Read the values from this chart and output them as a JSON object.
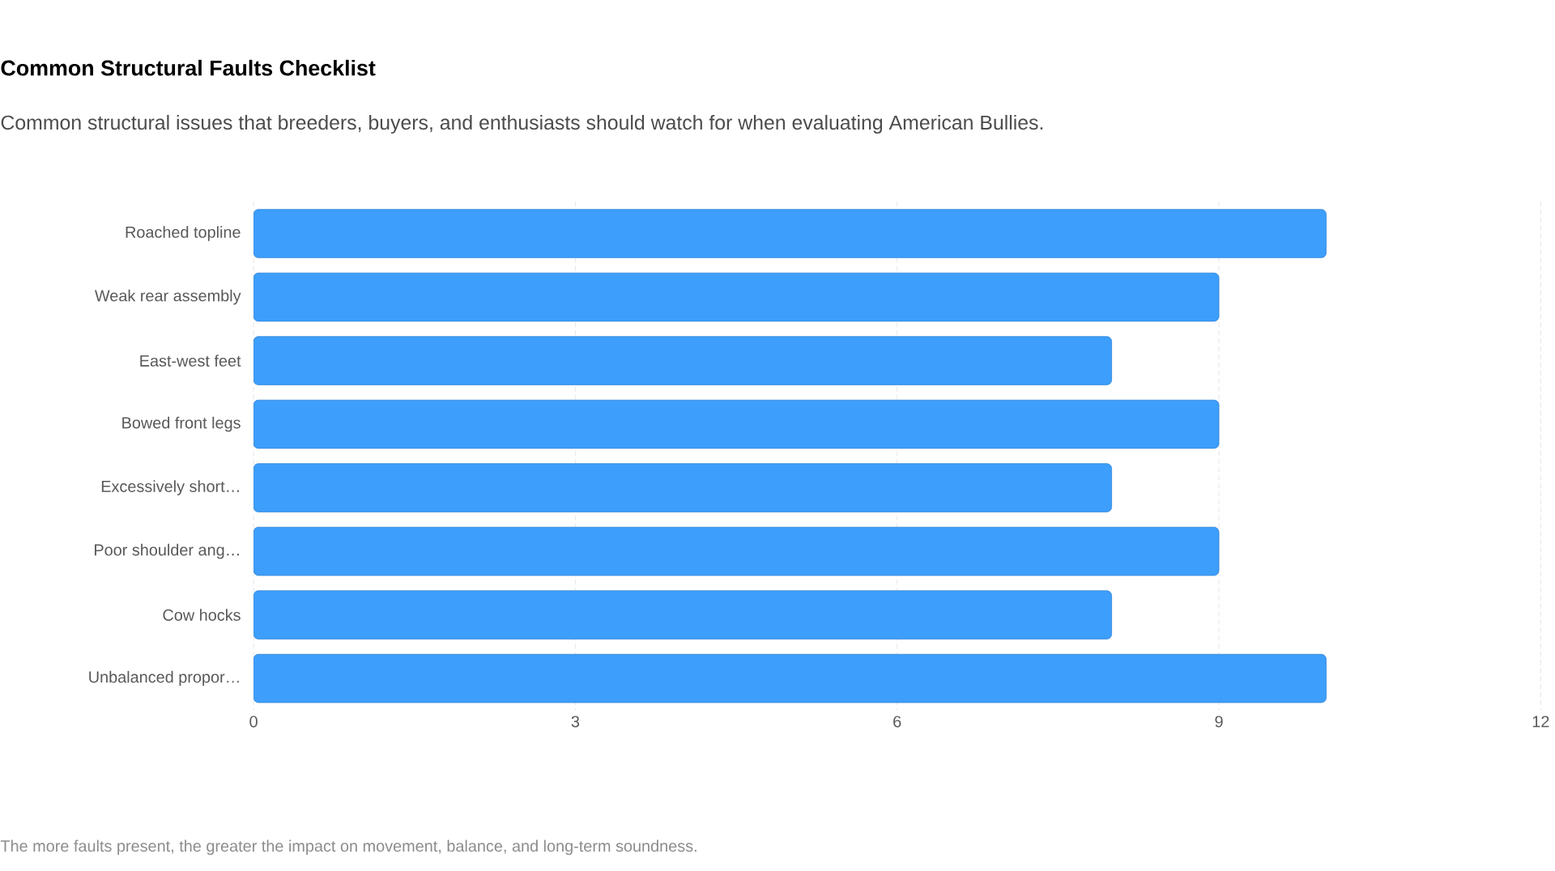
{
  "chart_data": {
    "type": "bar",
    "orientation": "horizontal",
    "title": "Common Structural Faults Checklist",
    "subtitle": "Common structural issues that breeders, buyers, and enthusiasts should watch for when evaluating American Bullies.",
    "categories": [
      "Roached topline",
      "Weak rear assembly",
      "East-west feet",
      "Bowed front legs",
      "Excessively short…",
      "Poor shoulder ang…",
      "Cow hocks",
      "Unbalanced propor…"
    ],
    "values": [
      10,
      9,
      8,
      9,
      8,
      9,
      8,
      10
    ],
    "color": "#3d9efc",
    "xlim": [
      0,
      12
    ],
    "xticks": [
      0,
      3,
      6,
      9,
      12
    ],
    "grid": "x",
    "annotations": [
      "The more faults present, the greater the impact on movement, balance, and long-term soundness."
    ]
  }
}
